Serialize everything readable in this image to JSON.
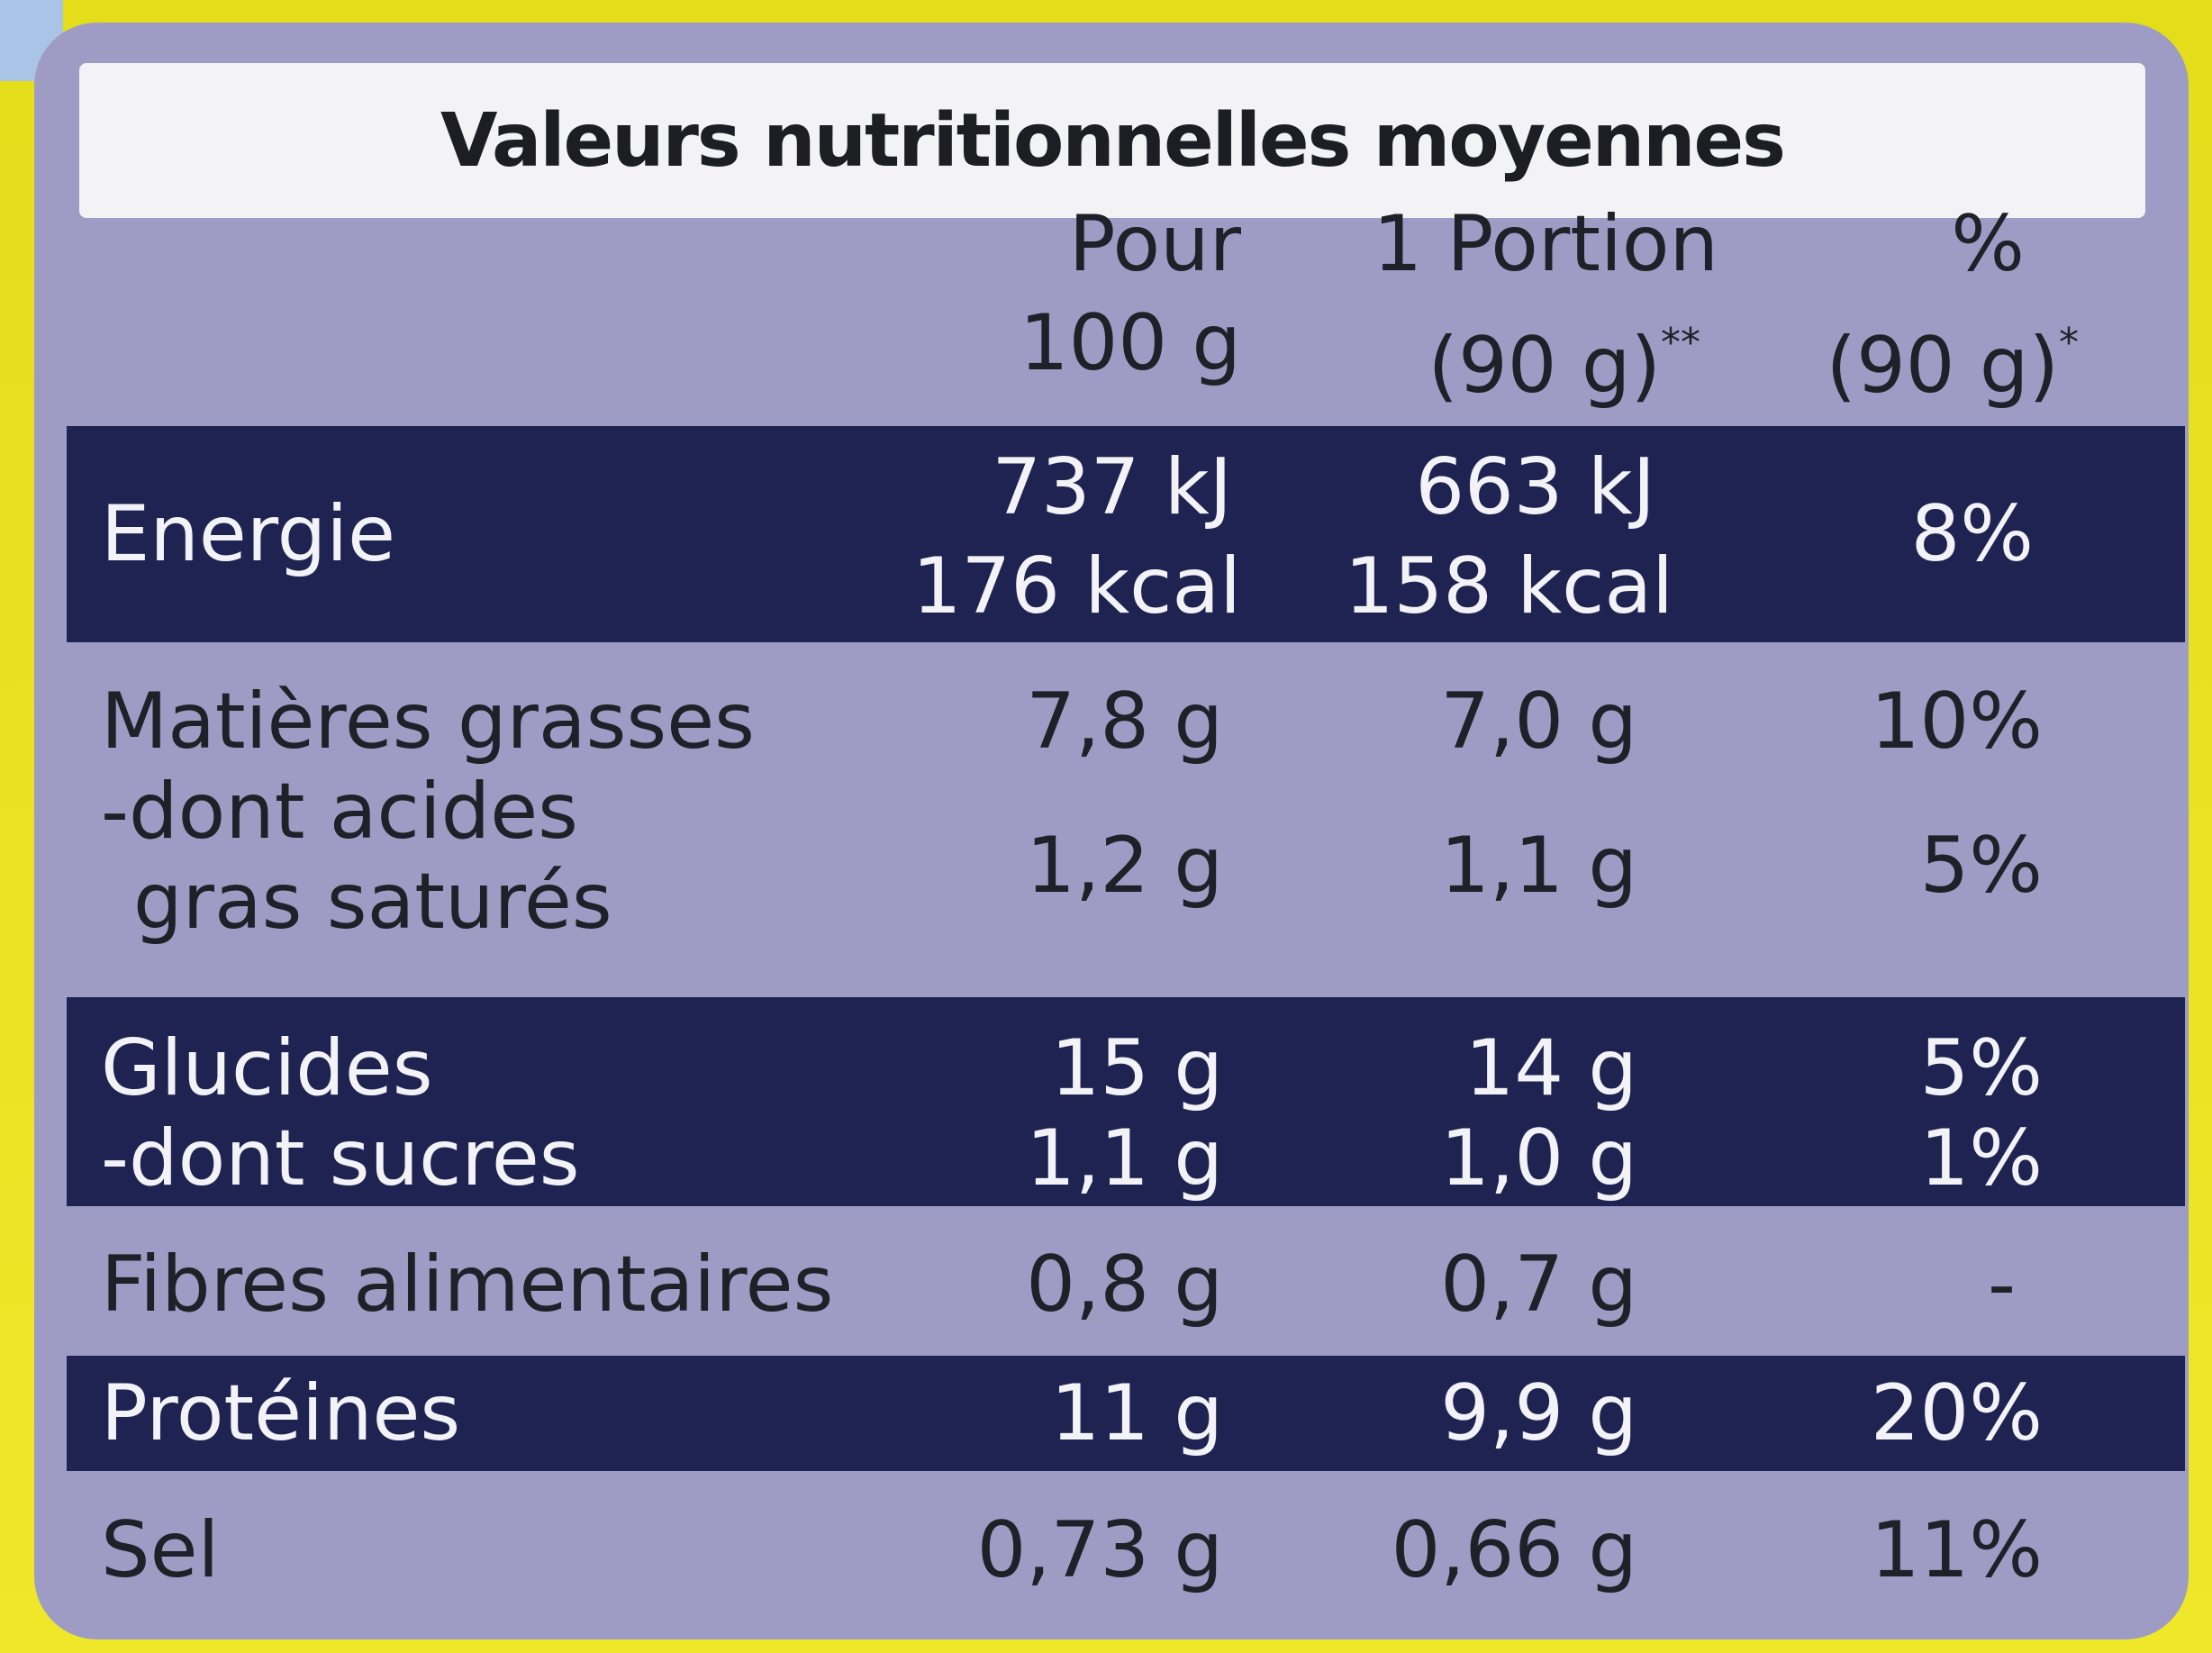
{
  "title": "Valeurs nutritionnelles moyennes",
  "columns": {
    "c1": {
      "line1": "Pour",
      "line2": "100 g"
    },
    "c2": {
      "line1": "1 Portion",
      "line2": "(90 g)",
      "mark": "**"
    },
    "c3": {
      "line1": "%",
      "line2": "(90 g)",
      "mark": "*"
    }
  },
  "rows": {
    "energie": {
      "label": "Energie",
      "v100_line1": "737 kJ",
      "v100_line2": "176 kcal",
      "vpor_line1": "663 kJ",
      "vpor_line2": "158 kcal",
      "pct": "8%"
    },
    "matieres": {
      "label": "Matières grasses",
      "v100": "7,8 g",
      "vpor": "7,0 g",
      "pct": "10%"
    },
    "satures": {
      "label_line1": "-dont acides",
      "label_line2": "gras saturés",
      "v100": "1,2 g",
      "vpor": "1,1 g",
      "pct": "5%"
    },
    "glucides": {
      "label": "Glucides",
      "v100": "15 g",
      "vpor": "14 g",
      "pct": "5%"
    },
    "sucres": {
      "label": "-dont sucres",
      "v100": "1,1 g",
      "vpor": "1,0 g",
      "pct": "1%"
    },
    "fibres": {
      "label": "Fibres alimentaires",
      "v100": "0,8 g",
      "vpor": "0,7 g",
      "pct": "-"
    },
    "proteines": {
      "label": "Protéines",
      "v100": "11 g",
      "vpor": "9,9 g",
      "pct": "20%"
    },
    "sel": {
      "label": "Sel",
      "v100": "0,73 g",
      "vpor": "0,66 g",
      "pct": "11%"
    }
  },
  "colors": {
    "panel": "#9e9cc4",
    "band": "#1f2352",
    "title_bg": "#f3f3f6",
    "packaging_yellow": "#e7e01e"
  }
}
